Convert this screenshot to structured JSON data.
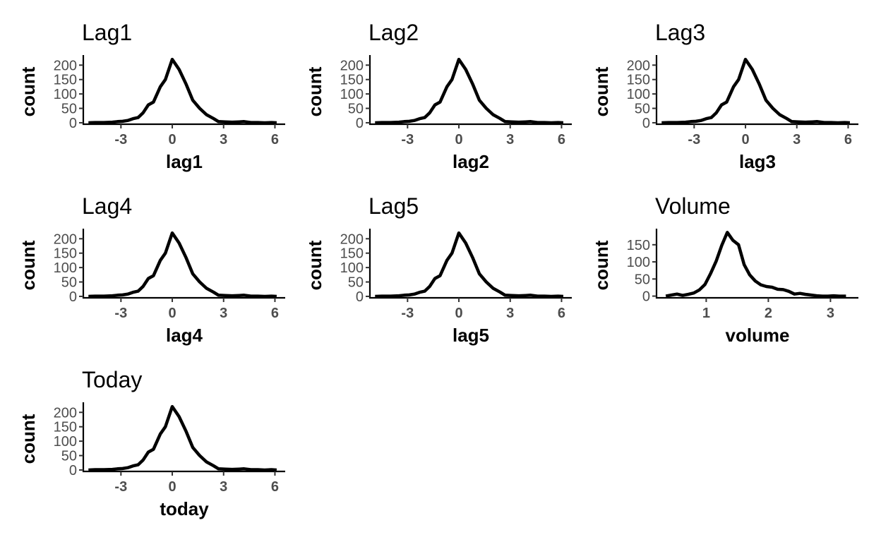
{
  "chart_data": [
    {
      "type": "line",
      "title": "Lag1",
      "xlabel": "lag1",
      "ylabel": "count",
      "xlim": [
        -5.2,
        6.6
      ],
      "ylim": [
        -5,
        235
      ],
      "xticks": [
        -3,
        0,
        3,
        6
      ],
      "xtick_labels": [
        "-3",
        "0",
        "3",
        "6"
      ],
      "yticks": [
        0,
        50,
        100,
        150,
        200
      ],
      "ytick_labels": [
        "0",
        "50",
        "100",
        "150",
        "200"
      ],
      "grid": false,
      "x": [
        -4.9,
        -4.5,
        -4.0,
        -3.5,
        -3.2,
        -2.9,
        -2.6,
        -2.3,
        -2.0,
        -1.7,
        -1.4,
        -1.1,
        -0.7,
        -0.4,
        0.0,
        0.4,
        0.8,
        1.2,
        1.6,
        2.0,
        2.4,
        2.7,
        3.1,
        3.5,
        3.9,
        4.2,
        4.6,
        5.0,
        5.4,
        5.8,
        6.1
      ],
      "y": [
        0,
        1,
        1,
        2,
        4,
        5,
        8,
        14,
        18,
        35,
        62,
        72,
        125,
        150,
        220,
        185,
        135,
        78,
        50,
        28,
        15,
        4,
        3,
        2,
        3,
        4,
        1,
        1,
        0,
        1,
        0
      ]
    },
    {
      "type": "line",
      "title": "Lag2",
      "xlabel": "lag2",
      "ylabel": "count",
      "xlim": [
        -5.2,
        6.6
      ],
      "ylim": [
        -5,
        235
      ],
      "xticks": [
        -3,
        0,
        3,
        6
      ],
      "xtick_labels": [
        "-3",
        "0",
        "3",
        "6"
      ],
      "yticks": [
        0,
        50,
        100,
        150,
        200
      ],
      "ytick_labels": [
        "0",
        "50",
        "100",
        "150",
        "200"
      ],
      "grid": false,
      "x": [
        -4.9,
        -4.5,
        -4.0,
        -3.5,
        -3.2,
        -2.9,
        -2.6,
        -2.3,
        -2.0,
        -1.7,
        -1.4,
        -1.1,
        -0.7,
        -0.4,
        0.0,
        0.4,
        0.8,
        1.2,
        1.6,
        2.0,
        2.4,
        2.7,
        3.1,
        3.5,
        3.9,
        4.2,
        4.6,
        5.0,
        5.4,
        5.8,
        6.1
      ],
      "y": [
        0,
        1,
        1,
        2,
        4,
        5,
        8,
        14,
        18,
        35,
        62,
        72,
        125,
        150,
        220,
        185,
        135,
        78,
        50,
        28,
        15,
        4,
        3,
        2,
        3,
        4,
        1,
        1,
        0,
        1,
        0
      ]
    },
    {
      "type": "line",
      "title": "Lag3",
      "xlabel": "lag3",
      "ylabel": "count",
      "xlim": [
        -5.2,
        6.6
      ],
      "ylim": [
        -5,
        235
      ],
      "xticks": [
        -3,
        0,
        3,
        6
      ],
      "xtick_labels": [
        "-3",
        "0",
        "3",
        "6"
      ],
      "yticks": [
        0,
        50,
        100,
        150,
        200
      ],
      "ytick_labels": [
        "0",
        "50",
        "100",
        "150",
        "200"
      ],
      "grid": false,
      "x": [
        -4.9,
        -4.5,
        -4.0,
        -3.5,
        -3.2,
        -2.9,
        -2.6,
        -2.3,
        -2.0,
        -1.7,
        -1.4,
        -1.1,
        -0.7,
        -0.4,
        0.0,
        0.4,
        0.8,
        1.2,
        1.6,
        2.0,
        2.4,
        2.7,
        3.1,
        3.5,
        3.9,
        4.2,
        4.6,
        5.0,
        5.4,
        5.8,
        6.1
      ],
      "y": [
        0,
        1,
        1,
        2,
        4,
        5,
        8,
        14,
        18,
        35,
        62,
        72,
        125,
        150,
        220,
        185,
        135,
        78,
        50,
        28,
        15,
        4,
        3,
        2,
        3,
        4,
        1,
        1,
        0,
        1,
        0
      ]
    },
    {
      "type": "line",
      "title": "Lag4",
      "xlabel": "lag4",
      "ylabel": "count",
      "xlim": [
        -5.2,
        6.6
      ],
      "ylim": [
        -5,
        235
      ],
      "xticks": [
        -3,
        0,
        3,
        6
      ],
      "xtick_labels": [
        "-3",
        "0",
        "3",
        "6"
      ],
      "yticks": [
        0,
        50,
        100,
        150,
        200
      ],
      "ytick_labels": [
        "0",
        "50",
        "100",
        "150",
        "200"
      ],
      "grid": false,
      "x": [
        -4.9,
        -4.5,
        -4.0,
        -3.5,
        -3.2,
        -2.9,
        -2.6,
        -2.3,
        -2.0,
        -1.7,
        -1.4,
        -1.1,
        -0.7,
        -0.4,
        0.0,
        0.4,
        0.8,
        1.2,
        1.6,
        2.0,
        2.4,
        2.7,
        3.1,
        3.5,
        3.9,
        4.2,
        4.6,
        5.0,
        5.4,
        5.8,
        6.1
      ],
      "y": [
        0,
        1,
        1,
        2,
        4,
        5,
        8,
        14,
        18,
        35,
        62,
        72,
        125,
        150,
        220,
        185,
        135,
        78,
        50,
        28,
        15,
        4,
        3,
        2,
        3,
        4,
        1,
        1,
        0,
        1,
        0
      ]
    },
    {
      "type": "line",
      "title": "Lag5",
      "xlabel": "lag5",
      "ylabel": "count",
      "xlim": [
        -5.2,
        6.6
      ],
      "ylim": [
        -5,
        235
      ],
      "xticks": [
        -3,
        0,
        3,
        6
      ],
      "xtick_labels": [
        "-3",
        "0",
        "3",
        "6"
      ],
      "yticks": [
        0,
        50,
        100,
        150,
        200
      ],
      "ytick_labels": [
        "0",
        "50",
        "100",
        "150",
        "200"
      ],
      "grid": false,
      "x": [
        -4.9,
        -4.5,
        -4.0,
        -3.5,
        -3.2,
        -2.9,
        -2.6,
        -2.3,
        -2.0,
        -1.7,
        -1.4,
        -1.1,
        -0.7,
        -0.4,
        0.0,
        0.4,
        0.8,
        1.2,
        1.6,
        2.0,
        2.4,
        2.7,
        3.1,
        3.5,
        3.9,
        4.2,
        4.6,
        5.0,
        5.4,
        5.8,
        6.1
      ],
      "y": [
        0,
        1,
        1,
        2,
        4,
        5,
        8,
        14,
        18,
        35,
        62,
        72,
        125,
        150,
        220,
        185,
        135,
        78,
        50,
        28,
        15,
        4,
        3,
        2,
        3,
        4,
        1,
        1,
        0,
        1,
        0
      ]
    },
    {
      "type": "line",
      "title": "Volume",
      "xlabel": "volume",
      "ylabel": "count",
      "xlim": [
        0.2,
        3.45
      ],
      "ylim": [
        -5,
        197
      ],
      "xticks": [
        1,
        2,
        3
      ],
      "xtick_labels": [
        "1",
        "2",
        "3"
      ],
      "yticks": [
        0,
        50,
        100,
        150
      ],
      "ytick_labels": [
        "0",
        "50",
        "100",
        "150"
      ],
      "grid": false,
      "x": [
        0.35,
        0.44,
        0.53,
        0.62,
        0.71,
        0.8,
        0.89,
        0.98,
        1.07,
        1.16,
        1.25,
        1.34,
        1.43,
        1.52,
        1.61,
        1.7,
        1.79,
        1.88,
        1.97,
        2.06,
        2.15,
        2.24,
        2.33,
        2.42,
        2.51,
        2.6,
        2.69,
        2.78,
        2.87,
        2.96,
        3.05,
        3.14,
        3.25
      ],
      "y": [
        0,
        3,
        6,
        2,
        5,
        9,
        18,
        34,
        66,
        102,
        148,
        186,
        163,
        150,
        92,
        62,
        44,
        33,
        28,
        26,
        20,
        19,
        14,
        6,
        8,
        5,
        3,
        1,
        0,
        0,
        1,
        0,
        0
      ]
    },
    {
      "type": "line",
      "title": "Today",
      "xlabel": "today",
      "ylabel": "count",
      "xlim": [
        -5.2,
        6.6
      ],
      "ylim": [
        -5,
        235
      ],
      "xticks": [
        -3,
        0,
        3,
        6
      ],
      "xtick_labels": [
        "-3",
        "0",
        "3",
        "6"
      ],
      "yticks": [
        0,
        50,
        100,
        150,
        200
      ],
      "ytick_labels": [
        "0",
        "50",
        "100",
        "150",
        "200"
      ],
      "grid": false,
      "x": [
        -4.9,
        -4.5,
        -4.0,
        -3.5,
        -3.2,
        -2.9,
        -2.6,
        -2.3,
        -2.0,
        -1.7,
        -1.4,
        -1.1,
        -0.7,
        -0.4,
        0.0,
        0.4,
        0.8,
        1.2,
        1.6,
        2.0,
        2.4,
        2.7,
        3.1,
        3.5,
        3.9,
        4.2,
        4.6,
        5.0,
        5.4,
        5.8,
        6.1
      ],
      "y": [
        0,
        1,
        1,
        2,
        4,
        5,
        8,
        14,
        18,
        35,
        62,
        72,
        125,
        150,
        220,
        185,
        135,
        78,
        50,
        28,
        15,
        4,
        3,
        2,
        3,
        4,
        1,
        1,
        0,
        1,
        0
      ]
    }
  ]
}
